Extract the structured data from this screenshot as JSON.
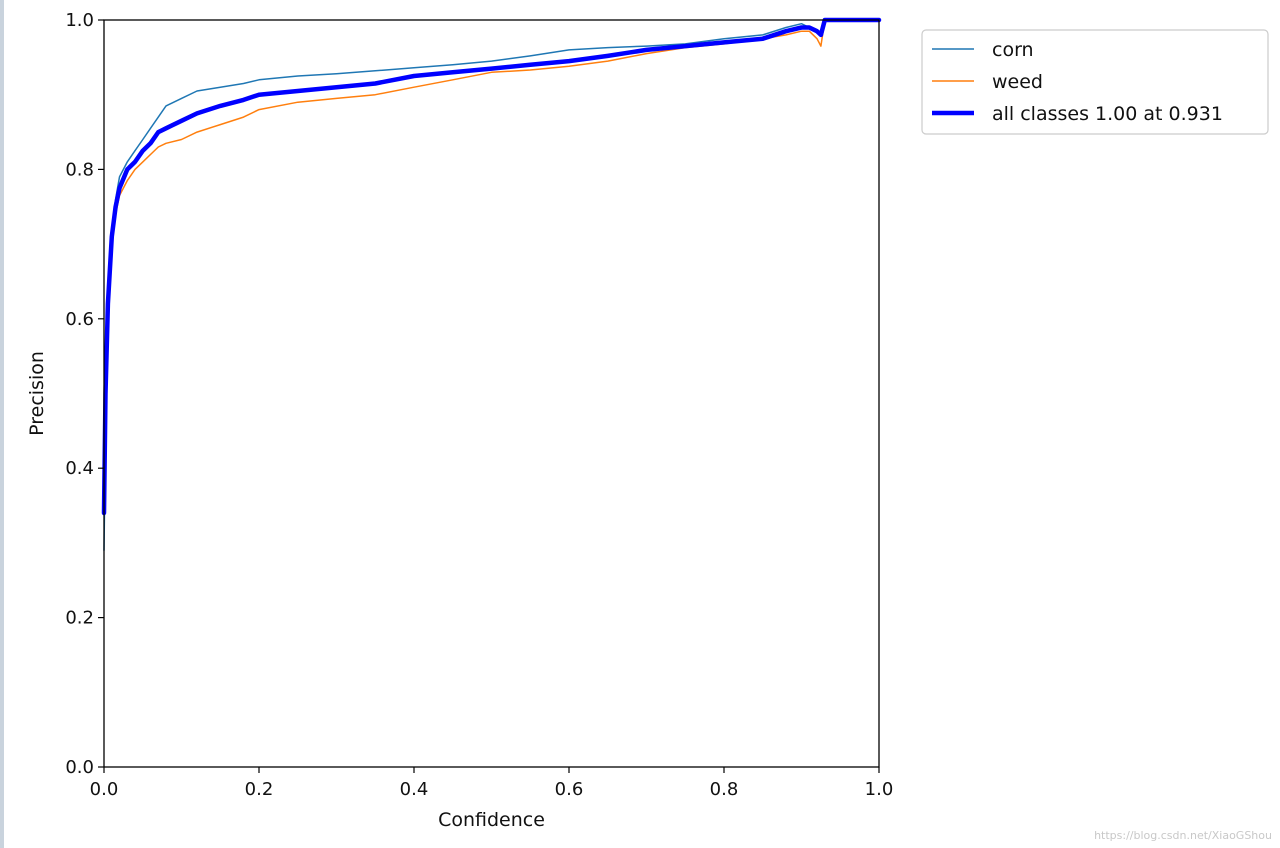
{
  "watermark": "https://blog.csdn.net/XiaoGShou",
  "chart_data": {
    "type": "line",
    "title": "",
    "xlabel": "Confidence",
    "ylabel": "Precision",
    "xlim": [
      0.0,
      1.0
    ],
    "ylim": [
      0.0,
      1.0
    ],
    "x_ticks": [
      "0.0",
      "0.2",
      "0.4",
      "0.6",
      "0.8",
      "1.0"
    ],
    "y_ticks": [
      "0.0",
      "0.2",
      "0.4",
      "0.6",
      "0.8",
      "1.0"
    ],
    "grid": false,
    "legend_position": "outside-top-right",
    "series": [
      {
        "name": "corn",
        "color": "#1f77b4",
        "width": 1.5,
        "x": [
          0.0,
          0.002,
          0.005,
          0.01,
          0.015,
          0.02,
          0.03,
          0.04,
          0.05,
          0.06,
          0.07,
          0.08,
          0.1,
          0.12,
          0.15,
          0.18,
          0.2,
          0.25,
          0.3,
          0.35,
          0.4,
          0.45,
          0.5,
          0.55,
          0.6,
          0.65,
          0.7,
          0.75,
          0.8,
          0.85,
          0.88,
          0.9,
          0.91,
          0.92,
          0.925,
          0.93,
          0.935,
          1.0
        ],
        "y": [
          0.29,
          0.45,
          0.62,
          0.72,
          0.76,
          0.79,
          0.81,
          0.825,
          0.84,
          0.855,
          0.87,
          0.885,
          0.895,
          0.905,
          0.91,
          0.915,
          0.92,
          0.925,
          0.928,
          0.932,
          0.936,
          0.94,
          0.945,
          0.952,
          0.96,
          0.963,
          0.965,
          0.968,
          0.975,
          0.98,
          0.99,
          0.995,
          0.99,
          0.985,
          0.98,
          1.0,
          1.0,
          1.0
        ]
      },
      {
        "name": "weed",
        "color": "#ff7f0e",
        "width": 1.5,
        "x": [
          0.0,
          0.002,
          0.005,
          0.01,
          0.015,
          0.02,
          0.03,
          0.04,
          0.05,
          0.06,
          0.07,
          0.08,
          0.1,
          0.12,
          0.15,
          0.18,
          0.2,
          0.25,
          0.3,
          0.35,
          0.4,
          0.45,
          0.5,
          0.55,
          0.6,
          0.65,
          0.7,
          0.75,
          0.8,
          0.85,
          0.88,
          0.9,
          0.91,
          0.92,
          0.925,
          0.93,
          0.935,
          1.0
        ],
        "y": [
          0.34,
          0.5,
          0.62,
          0.7,
          0.74,
          0.765,
          0.785,
          0.8,
          0.81,
          0.82,
          0.83,
          0.835,
          0.84,
          0.85,
          0.86,
          0.87,
          0.88,
          0.89,
          0.895,
          0.9,
          0.91,
          0.92,
          0.93,
          0.933,
          0.938,
          0.945,
          0.955,
          0.963,
          0.968,
          0.975,
          0.98,
          0.985,
          0.985,
          0.975,
          0.965,
          1.0,
          1.0,
          1.0
        ]
      },
      {
        "name": "all classes 1.00 at 0.931",
        "color": "#0000ff",
        "width": 4.5,
        "x": [
          0.0,
          0.002,
          0.005,
          0.01,
          0.015,
          0.02,
          0.03,
          0.04,
          0.05,
          0.06,
          0.07,
          0.08,
          0.1,
          0.12,
          0.15,
          0.18,
          0.2,
          0.25,
          0.3,
          0.35,
          0.4,
          0.45,
          0.5,
          0.55,
          0.6,
          0.65,
          0.7,
          0.75,
          0.8,
          0.85,
          0.88,
          0.9,
          0.91,
          0.92,
          0.925,
          0.93,
          0.935,
          1.0
        ],
        "y": [
          0.34,
          0.5,
          0.62,
          0.71,
          0.75,
          0.775,
          0.8,
          0.81,
          0.825,
          0.835,
          0.85,
          0.855,
          0.865,
          0.875,
          0.885,
          0.893,
          0.9,
          0.905,
          0.91,
          0.915,
          0.925,
          0.93,
          0.935,
          0.94,
          0.945,
          0.952,
          0.96,
          0.965,
          0.97,
          0.975,
          0.985,
          0.99,
          0.99,
          0.985,
          0.98,
          1.0,
          1.0,
          1.0
        ]
      }
    ]
  }
}
